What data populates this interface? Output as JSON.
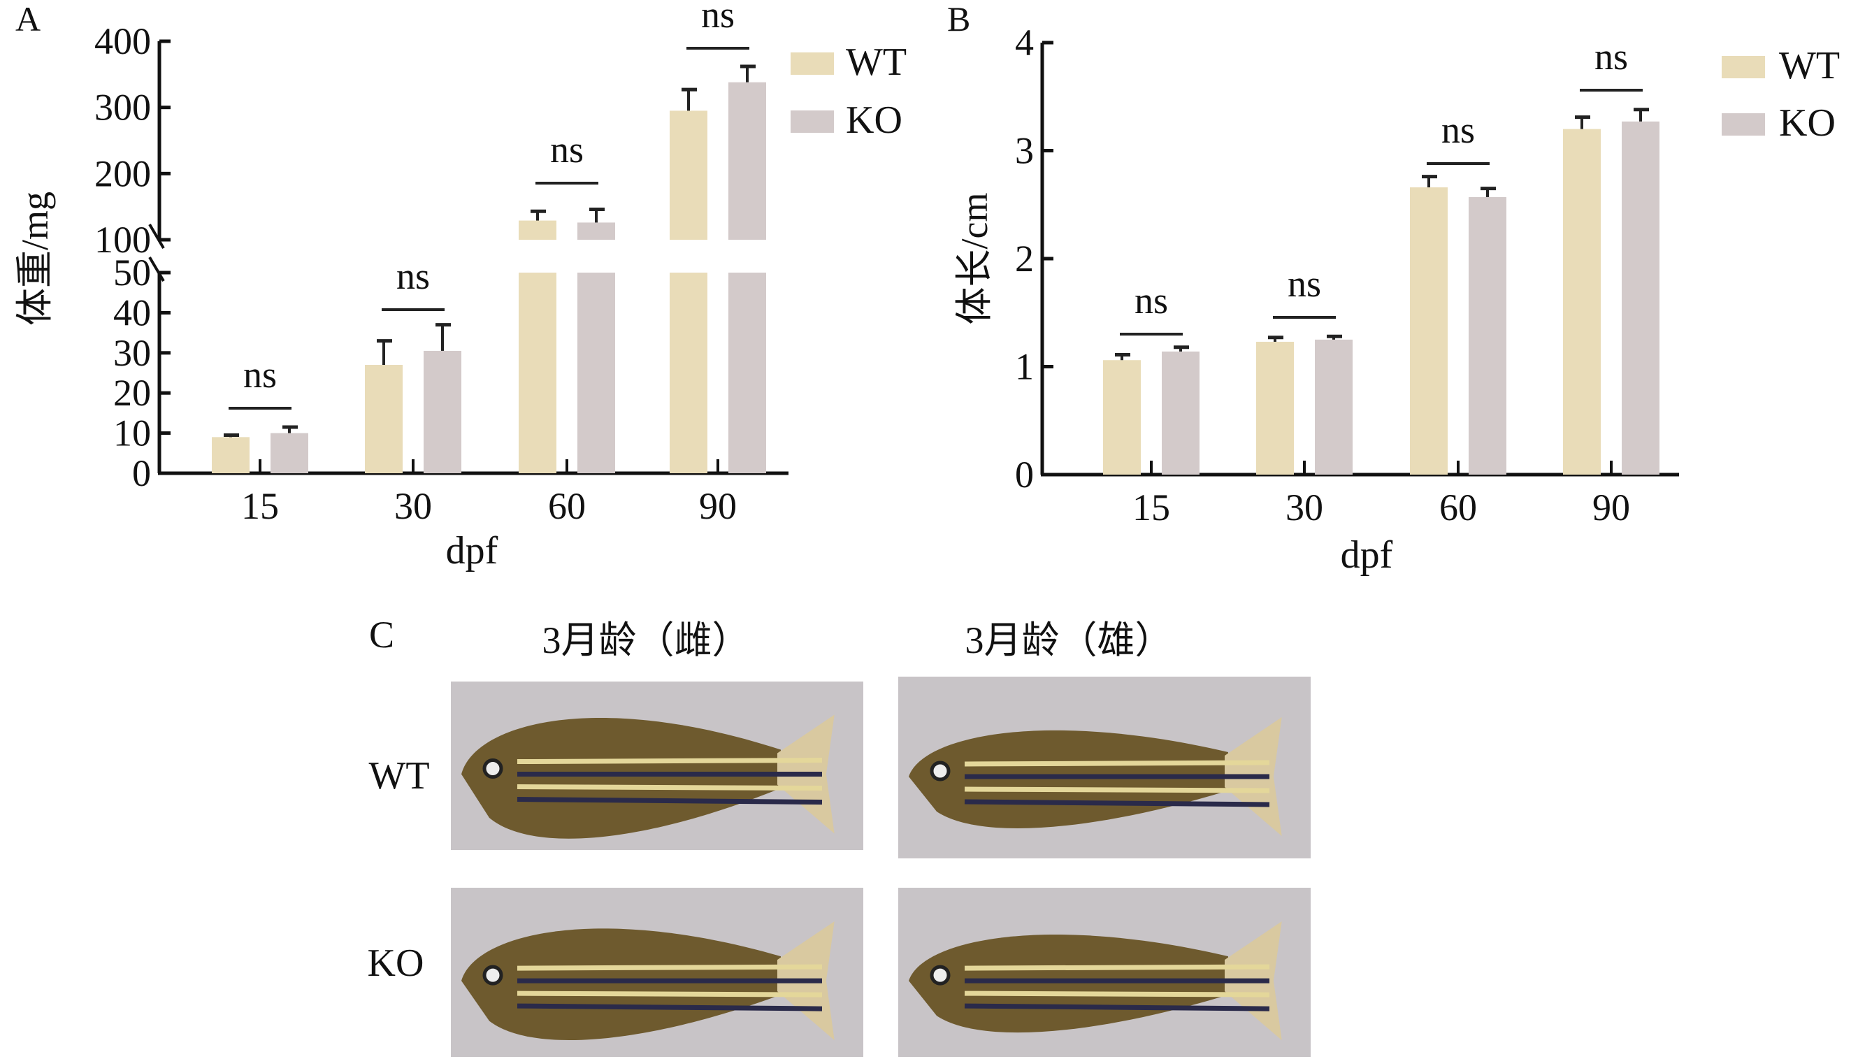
{
  "colors": {
    "WT": "#e9dcb8",
    "KO": "#d3caca",
    "axis": "#111111",
    "photo_bg": "#c8c4c7"
  },
  "chart_data": [
    {
      "panel": "A",
      "type": "bar",
      "xlabel": "dpf",
      "ylabel": "体重/mg",
      "categories": [
        "15",
        "30",
        "60",
        "90"
      ],
      "broken_axis": true,
      "ylim_lower": [
        0,
        50
      ],
      "ylim_upper": [
        100,
        400
      ],
      "yticks_lower": [
        "0",
        "10",
        "20",
        "30",
        "40",
        "50"
      ],
      "yticks_upper": [
        "100",
        "200",
        "300",
        "400"
      ],
      "legend": "top-right",
      "series": [
        {
          "name": "WT",
          "values": [
            9,
            27,
            129,
            295
          ],
          "error_upper": [
            9.5,
            33,
            143,
            327
          ]
        },
        {
          "name": "KO",
          "values": [
            10,
            30.5,
            126,
            338
          ],
          "error_upper": [
            11.5,
            37,
            146,
            362
          ]
        }
      ],
      "annotations": [
        "ns",
        "ns",
        "ns",
        "ns"
      ]
    },
    {
      "panel": "B",
      "type": "bar",
      "xlabel": "dpf",
      "ylabel": "体长/cm",
      "categories": [
        "15",
        "30",
        "60",
        "90"
      ],
      "ylim": [
        0,
        4
      ],
      "yticks": [
        "0",
        "1",
        "2",
        "3",
        "4"
      ],
      "legend": "top-right",
      "series": [
        {
          "name": "WT",
          "values": [
            1.06,
            1.23,
            2.66,
            3.2
          ],
          "error_upper": [
            1.11,
            1.27,
            2.76,
            3.31
          ]
        },
        {
          "name": "KO",
          "values": [
            1.14,
            1.25,
            2.57,
            3.27
          ],
          "error_upper": [
            1.18,
            1.28,
            2.65,
            3.38
          ]
        }
      ],
      "annotations": [
        "ns",
        "ns",
        "ns",
        "ns"
      ]
    }
  ],
  "panel_c": {
    "label": "C",
    "columns": [
      "3月龄（雌）",
      "3月龄（雄）"
    ],
    "rows": [
      "WT",
      "KO"
    ]
  }
}
